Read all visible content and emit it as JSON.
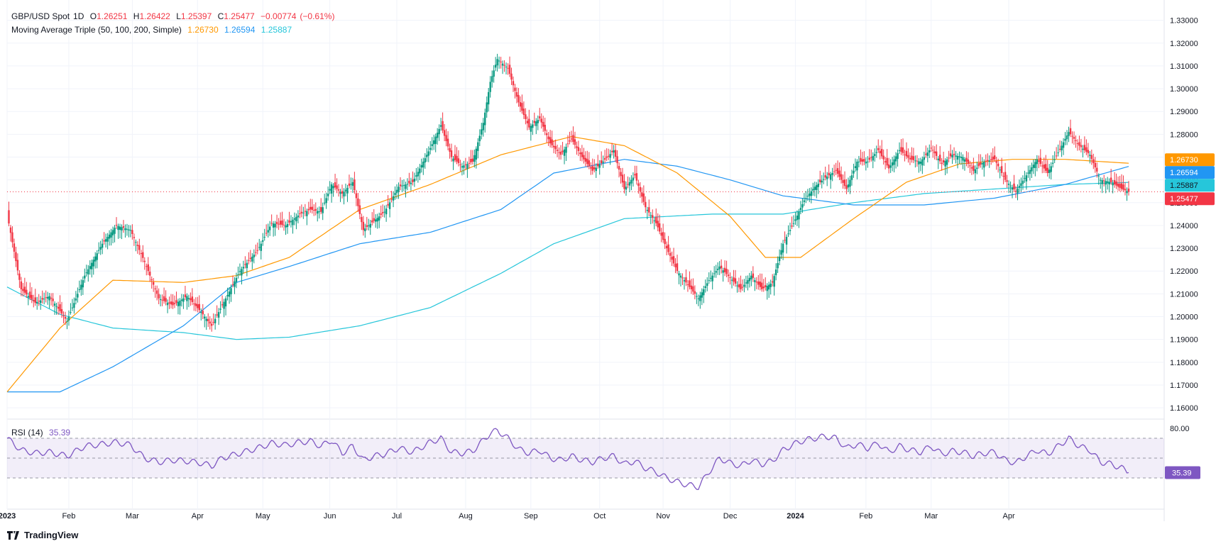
{
  "header": {
    "symbol": "GBP/USD Spot",
    "interval": "1D",
    "open_label": "O",
    "open": "1.26251",
    "high_label": "H",
    "high": "1.26422",
    "low_label": "L",
    "low": "1.25397",
    "close_label": "C",
    "close": "1.25477",
    "change": "−0.00774",
    "change_pct": "(−0.61%)"
  },
  "ma_legend": {
    "label": "Moving Average Triple (50, 100, 200, Simple)",
    "ma50": "1.26730",
    "ma100": "1.26594",
    "ma200": "1.25887"
  },
  "rsi_legend": {
    "label": "RSI (14)",
    "value": "35.39"
  },
  "footer": {
    "brand": "TradingView"
  },
  "colors": {
    "up": "#089981",
    "down": "#f23645",
    "ma50": "#ff9800",
    "ma100": "#2196f3",
    "ma200": "#26c6da",
    "rsi": "#7e57c2",
    "rsi_band": "rgba(126,87,194,0.1)"
  },
  "chart_data": {
    "type": "candlestick",
    "price_axis": {
      "ticks": [
        "1.33000",
        "1.32000",
        "1.31000",
        "1.30000",
        "1.29000",
        "1.28000",
        "1.27000",
        "1.26000",
        "1.25000",
        "1.24000",
        "1.23000",
        "1.22000",
        "1.21000",
        "1.20000",
        "1.19000",
        "1.18000",
        "1.17000",
        "1.16000"
      ],
      "range": [
        1.1563,
        1.3358
      ]
    },
    "time_axis": [
      "2023",
      "Feb",
      "Mar",
      "Apr",
      "May",
      "Jun",
      "Jul",
      "Aug",
      "Sep",
      "Oct",
      "Nov",
      "Dec",
      "2024",
      "Feb",
      "Mar",
      "Apr"
    ],
    "last_price": 1.25477,
    "price_labels": [
      {
        "value": "1.26730",
        "series": "ma50"
      },
      {
        "value": "1.26594",
        "series": "ma100"
      },
      {
        "value": "1.25887",
        "series": "ma200"
      },
      {
        "value": "1.25477",
        "series": "close"
      }
    ],
    "close_path": [
      [
        0,
        1.245
      ],
      [
        8,
        1.212
      ],
      [
        16,
        1.206
      ],
      [
        24,
        1.209
      ],
      [
        34,
        1.198
      ],
      [
        44,
        1.218
      ],
      [
        54,
        1.232
      ],
      [
        62,
        1.24
      ],
      [
        70,
        1.238
      ],
      [
        78,
        1.224
      ],
      [
        86,
        1.208
      ],
      [
        94,
        1.205
      ],
      [
        102,
        1.209
      ],
      [
        110,
        1.202
      ],
      [
        116,
        1.196
      ],
      [
        122,
        1.205
      ],
      [
        132,
        1.22
      ],
      [
        142,
        1.229
      ],
      [
        150,
        1.241
      ],
      [
        158,
        1.24
      ],
      [
        166,
        1.245
      ],
      [
        172,
        1.247
      ],
      [
        178,
        1.246
      ],
      [
        184,
        1.258
      ],
      [
        190,
        1.254
      ],
      [
        196,
        1.259
      ],
      [
        202,
        1.238
      ],
      [
        208,
        1.242
      ],
      [
        214,
        1.246
      ],
      [
        222,
        1.257
      ],
      [
        230,
        1.259
      ],
      [
        240,
        1.274
      ],
      [
        246,
        1.284
      ],
      [
        252,
        1.27
      ],
      [
        258,
        1.266
      ],
      [
        264,
        1.268
      ],
      [
        270,
        1.285
      ],
      [
        274,
        1.303
      ],
      [
        278,
        1.313
      ],
      [
        284,
        1.309
      ],
      [
        290,
        1.294
      ],
      [
        296,
        1.283
      ],
      [
        302,
        1.287
      ],
      [
        308,
        1.276
      ],
      [
        314,
        1.271
      ],
      [
        320,
        1.278
      ],
      [
        326,
        1.27
      ],
      [
        332,
        1.264
      ],
      [
        338,
        1.268
      ],
      [
        344,
        1.273
      ],
      [
        350,
        1.256
      ],
      [
        356,
        1.262
      ],
      [
        362,
        1.248
      ],
      [
        368,
        1.241
      ],
      [
        374,
        1.23
      ],
      [
        380,
        1.22
      ],
      [
        386,
        1.214
      ],
      [
        392,
        1.208
      ],
      [
        398,
        1.216
      ],
      [
        404,
        1.222
      ],
      [
        410,
        1.217
      ],
      [
        416,
        1.212
      ],
      [
        422,
        1.218
      ],
      [
        428,
        1.212
      ],
      [
        434,
        1.215
      ],
      [
        440,
        1.232
      ],
      [
        446,
        1.241
      ],
      [
        452,
        1.251
      ],
      [
        458,
        1.257
      ],
      [
        464,
        1.261
      ],
      [
        470,
        1.264
      ],
      [
        476,
        1.256
      ],
      [
        482,
        1.268
      ],
      [
        488,
        1.268
      ],
      [
        494,
        1.273
      ],
      [
        500,
        1.265
      ],
      [
        506,
        1.273
      ],
      [
        512,
        1.269
      ],
      [
        518,
        1.268
      ],
      [
        524,
        1.274
      ],
      [
        530,
        1.267
      ],
      [
        536,
        1.271
      ],
      [
        542,
        1.27
      ],
      [
        548,
        1.264
      ],
      [
        554,
        1.268
      ],
      [
        560,
        1.269
      ],
      [
        566,
        1.26
      ],
      [
        572,
        1.255
      ],
      [
        578,
        1.262
      ],
      [
        584,
        1.269
      ],
      [
        590,
        1.263
      ],
      [
        596,
        1.272
      ],
      [
        602,
        1.281
      ],
      [
        608,
        1.275
      ],
      [
        614,
        1.271
      ],
      [
        620,
        1.26
      ],
      [
        626,
        1.259
      ],
      [
        632,
        1.256
      ],
      [
        636,
        1.2548
      ]
    ],
    "ma_paths": {
      "ma50": [
        [
          0,
          1.167
        ],
        [
          30,
          1.195
        ],
        [
          60,
          1.216
        ],
        [
          100,
          1.215
        ],
        [
          130,
          1.218
        ],
        [
          160,
          1.226
        ],
        [
          200,
          1.247
        ],
        [
          240,
          1.258
        ],
        [
          280,
          1.271
        ],
        [
          320,
          1.279
        ],
        [
          350,
          1.275
        ],
        [
          380,
          1.263
        ],
        [
          410,
          1.244
        ],
        [
          430,
          1.226
        ],
        [
          450,
          1.226
        ],
        [
          480,
          1.243
        ],
        [
          510,
          1.259
        ],
        [
          540,
          1.267
        ],
        [
          570,
          1.269
        ],
        [
          600,
          1.269
        ],
        [
          636,
          1.2673
        ]
      ],
      "ma100": [
        [
          0,
          1.167
        ],
        [
          30,
          1.167
        ],
        [
          60,
          1.178
        ],
        [
          100,
          1.196
        ],
        [
          130,
          1.215
        ],
        [
          160,
          1.222
        ],
        [
          200,
          1.232
        ],
        [
          240,
          1.237
        ],
        [
          280,
          1.247
        ],
        [
          310,
          1.263
        ],
        [
          350,
          1.269
        ],
        [
          380,
          1.266
        ],
        [
          410,
          1.26
        ],
        [
          440,
          1.253
        ],
        [
          480,
          1.249
        ],
        [
          520,
          1.249
        ],
        [
          560,
          1.252
        ],
        [
          600,
          1.258
        ],
        [
          636,
          1.2659
        ]
      ],
      "ma200": [
        [
          0,
          1.213
        ],
        [
          30,
          1.201
        ],
        [
          60,
          1.195
        ],
        [
          100,
          1.193
        ],
        [
          130,
          1.19
        ],
        [
          160,
          1.191
        ],
        [
          200,
          1.196
        ],
        [
          240,
          1.204
        ],
        [
          280,
          1.219
        ],
        [
          310,
          1.232
        ],
        [
          350,
          1.243
        ],
        [
          400,
          1.245
        ],
        [
          440,
          1.245
        ],
        [
          480,
          1.25
        ],
        [
          520,
          1.254
        ],
        [
          560,
          1.256
        ],
        [
          600,
          1.258
        ],
        [
          636,
          1.2589
        ]
      ]
    },
    "rsi": {
      "levels": [
        70,
        50,
        30
      ],
      "axis_tick": "80.00",
      "value": 35.39,
      "path": [
        [
          0,
          70
        ],
        [
          8,
          58
        ],
        [
          16,
          55
        ],
        [
          24,
          56
        ],
        [
          34,
          52
        ],
        [
          44,
          62
        ],
        [
          54,
          64
        ],
        [
          62,
          66
        ],
        [
          70,
          63
        ],
        [
          78,
          50
        ],
        [
          86,
          46
        ],
        [
          94,
          48
        ],
        [
          102,
          47
        ],
        [
          110,
          45
        ],
        [
          116,
          42
        ],
        [
          122,
          50
        ],
        [
          132,
          55
        ],
        [
          142,
          60
        ],
        [
          150,
          65
        ],
        [
          158,
          63
        ],
        [
          166,
          66
        ],
        [
          172,
          67
        ],
        [
          178,
          62
        ],
        [
          184,
          68
        ],
        [
          190,
          55
        ],
        [
          196,
          62
        ],
        [
          202,
          48
        ],
        [
          208,
          52
        ],
        [
          214,
          54
        ],
        [
          222,
          60
        ],
        [
          230,
          56
        ],
        [
          240,
          66
        ],
        [
          246,
          70
        ],
        [
          252,
          56
        ],
        [
          258,
          55
        ],
        [
          264,
          57
        ],
        [
          270,
          68
        ],
        [
          274,
          75
        ],
        [
          278,
          78
        ],
        [
          284,
          70
        ],
        [
          290,
          59
        ],
        [
          296,
          55
        ],
        [
          302,
          58
        ],
        [
          308,
          50
        ],
        [
          314,
          48
        ],
        [
          320,
          52
        ],
        [
          326,
          48
        ],
        [
          332,
          46
        ],
        [
          338,
          50
        ],
        [
          344,
          52
        ],
        [
          350,
          44
        ],
        [
          356,
          47
        ],
        [
          362,
          40
        ],
        [
          368,
          36
        ],
        [
          374,
          30
        ],
        [
          380,
          26
        ],
        [
          386,
          23
        ],
        [
          392,
          21
        ],
        [
          398,
          36
        ],
        [
          404,
          50
        ],
        [
          410,
          45
        ],
        [
          416,
          42
        ],
        [
          422,
          48
        ],
        [
          428,
          44
        ],
        [
          434,
          47
        ],
        [
          440,
          58
        ],
        [
          446,
          64
        ],
        [
          452,
          68
        ],
        [
          458,
          70
        ],
        [
          464,
          72
        ],
        [
          470,
          70
        ],
        [
          476,
          60
        ],
        [
          482,
          64
        ],
        [
          488,
          60
        ],
        [
          494,
          65
        ],
        [
          500,
          56
        ],
        [
          506,
          62
        ],
        [
          512,
          58
        ],
        [
          518,
          56
        ],
        [
          524,
          62
        ],
        [
          530,
          54
        ],
        [
          536,
          57
        ],
        [
          542,
          56
        ],
        [
          548,
          52
        ],
        [
          554,
          55
        ],
        [
          560,
          56
        ],
        [
          566,
          48
        ],
        [
          572,
          45
        ],
        [
          578,
          52
        ],
        [
          584,
          58
        ],
        [
          590,
          54
        ],
        [
          596,
          62
        ],
        [
          602,
          70
        ],
        [
          608,
          62
        ],
        [
          614,
          58
        ],
        [
          620,
          46
        ],
        [
          626,
          44
        ],
        [
          632,
          40
        ],
        [
          636,
          35.39
        ]
      ]
    }
  }
}
